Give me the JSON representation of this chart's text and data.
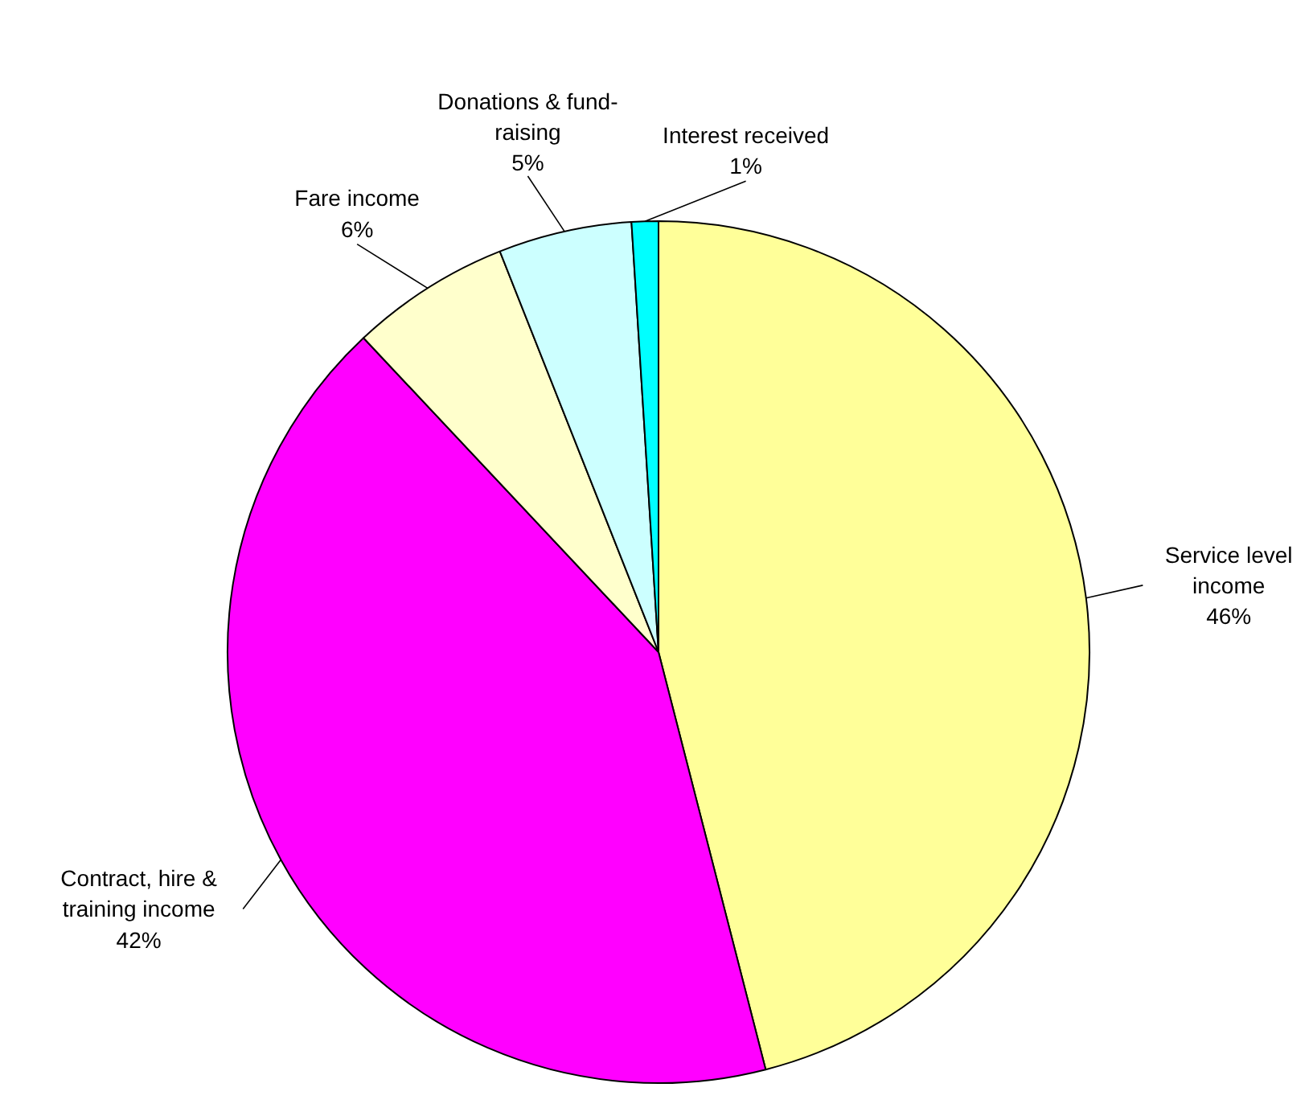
{
  "chart_data": {
    "type": "pie",
    "categories": [
      "Service level income",
      "Contract, hire & training income",
      "Fare income",
      "Donations & fund-raising",
      "Interest received"
    ],
    "values": [
      46,
      42,
      6,
      5,
      1
    ],
    "colors": [
      "#ffff99",
      "#ff00ff",
      "#ffffcc",
      "#ccffff",
      "#00ffff"
    ],
    "value_labels": [
      "46%",
      "42%",
      "6%",
      "5%",
      "1%"
    ]
  }
}
